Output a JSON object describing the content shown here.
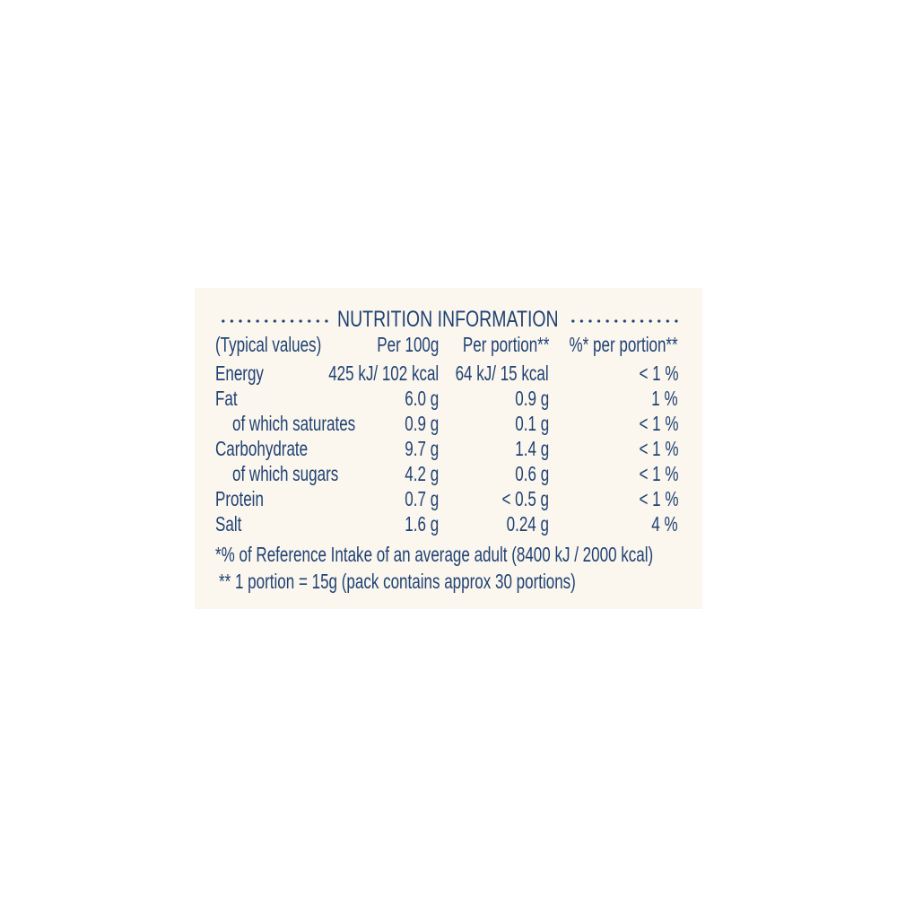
{
  "title": "NUTRITION INFORMATION",
  "headers": [
    "(Typical values)",
    "Per 100g",
    "Per portion**",
    "%* per portion**"
  ],
  "rows": [
    {
      "label": "Energy",
      "per100": "425 kJ/ 102 kcal",
      "portion": "64 kJ/ 15 kcal",
      "ri": "< 1 %",
      "indent": false
    },
    {
      "label": "Fat",
      "per100": "6.0 g",
      "portion": "0.9 g",
      "ri": "1 %",
      "indent": false
    },
    {
      "label": "of which saturates",
      "per100": "0.9 g",
      "portion": "0.1 g",
      "ri": "< 1 %",
      "indent": true
    },
    {
      "label": "Carbohydrate",
      "per100": "9.7 g",
      "portion": "1.4 g",
      "ri": "< 1 %",
      "indent": false
    },
    {
      "label": "of which sugars",
      "per100": "4.2 g",
      "portion": "0.6 g",
      "ri": "< 1 %",
      "indent": true
    },
    {
      "label": "Protein",
      "per100": "0.7 g",
      "portion": "< 0.5 g",
      "ri": "< 1 %",
      "indent": false
    },
    {
      "label": "Salt",
      "per100": "1.6 g",
      "portion": "0.24 g",
      "ri": "4 %",
      "indent": false
    }
  ],
  "footnotes": [
    "*% of Reference Intake of an average adult (8400 kJ / 2000 kcal)",
    "** 1 portion = 15g (pack contains approx 30 portions)"
  ],
  "colors": {
    "text": "#1f4273",
    "background": "#fbf6ee"
  }
}
